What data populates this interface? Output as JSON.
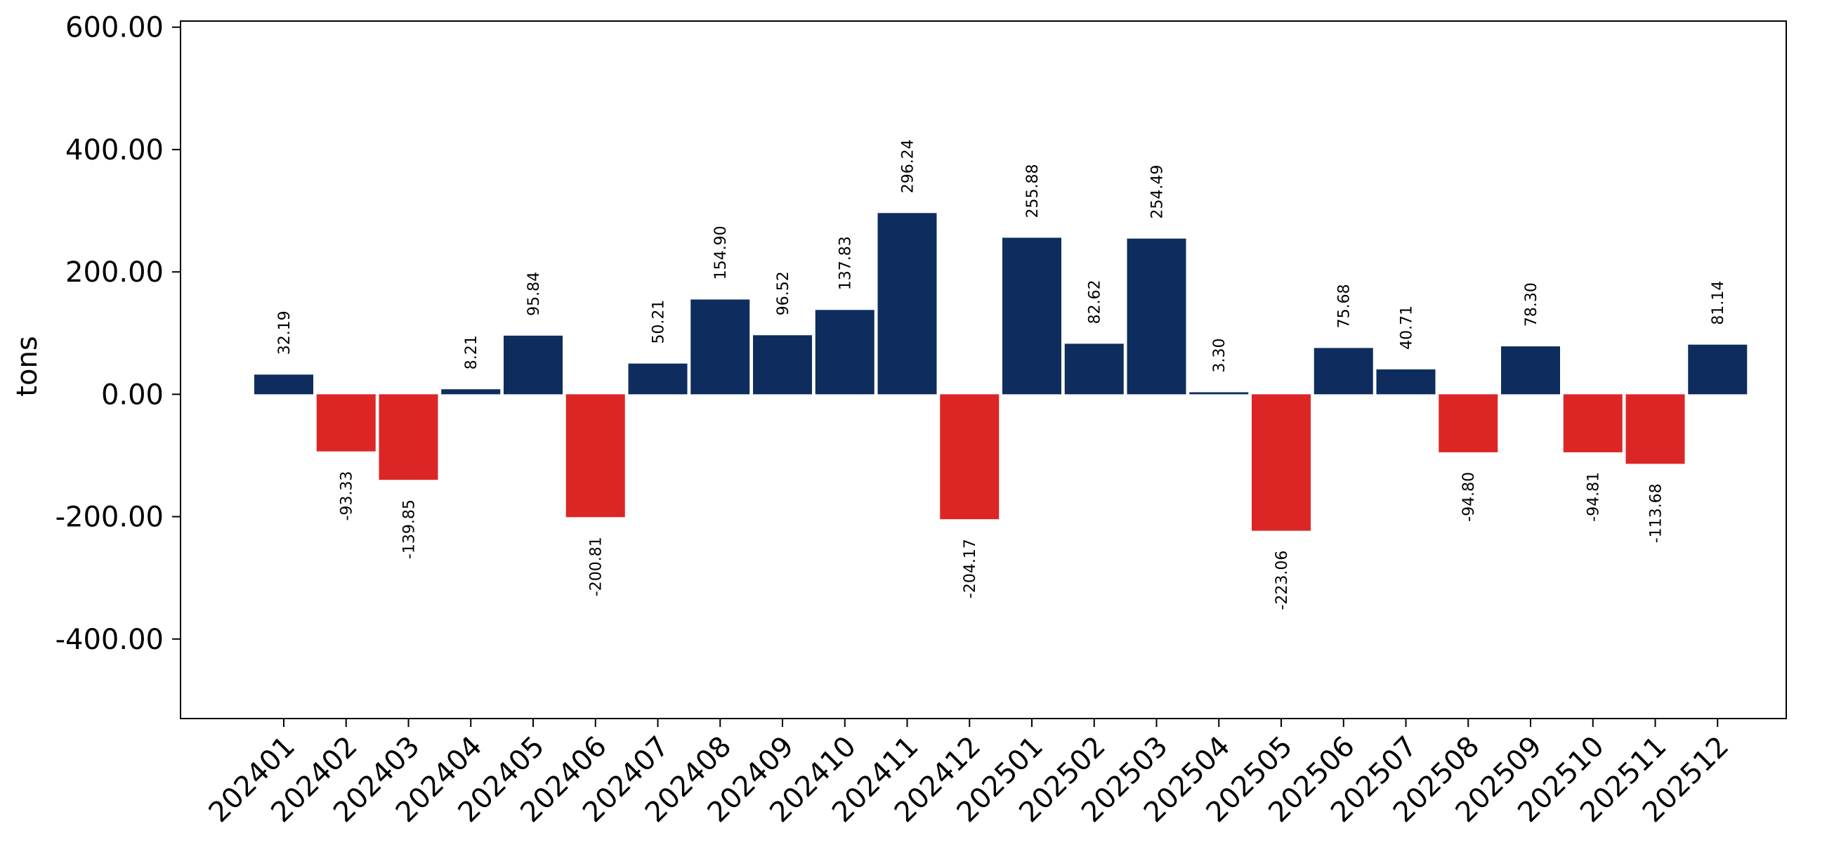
{
  "chart_data": {
    "type": "bar",
    "title": "",
    "xlabel": "",
    "ylabel": "tons",
    "ylim": [
      -530,
      610
    ],
    "yticks": [
      600,
      400,
      200,
      0,
      -200,
      -400
    ],
    "ytick_labels": [
      "600.00",
      "400.00",
      "200.00",
      "0.00",
      "-200.00",
      "-400.00"
    ],
    "grid": false,
    "legend": "none",
    "colors": {
      "positive": "#0e2d5e",
      "negative": "#dc2626"
    },
    "categories": [
      "202401",
      "202402",
      "202403",
      "202404",
      "202405",
      "202406",
      "202407",
      "202408",
      "202409",
      "202410",
      "202411",
      "202412",
      "202501",
      "202502",
      "202503",
      "202504",
      "202505",
      "202506",
      "202507",
      "202508",
      "202509",
      "202510",
      "202511",
      "202512"
    ],
    "values": [
      32.19,
      -93.33,
      -139.85,
      8.21,
      95.84,
      -200.81,
      50.21,
      154.9,
      96.52,
      137.83,
      296.24,
      -204.17,
      255.88,
      82.62,
      254.49,
      3.3,
      -223.06,
      75.68,
      40.71,
      -94.8,
      78.3,
      -94.81,
      -113.68,
      81.14
    ],
    "value_labels": [
      "32.19",
      "-93.33",
      "-139.85",
      "8.21",
      "95.84",
      "-200.81",
      "50.21",
      "154.90",
      "96.52",
      "137.83",
      "296.24",
      "-204.17",
      "255.88",
      "82.62",
      "254.49",
      "3.30",
      "-223.06",
      "75.68",
      "40.71",
      "-94.80",
      "78.30",
      "-94.81",
      "-113.68",
      "81.14"
    ]
  }
}
